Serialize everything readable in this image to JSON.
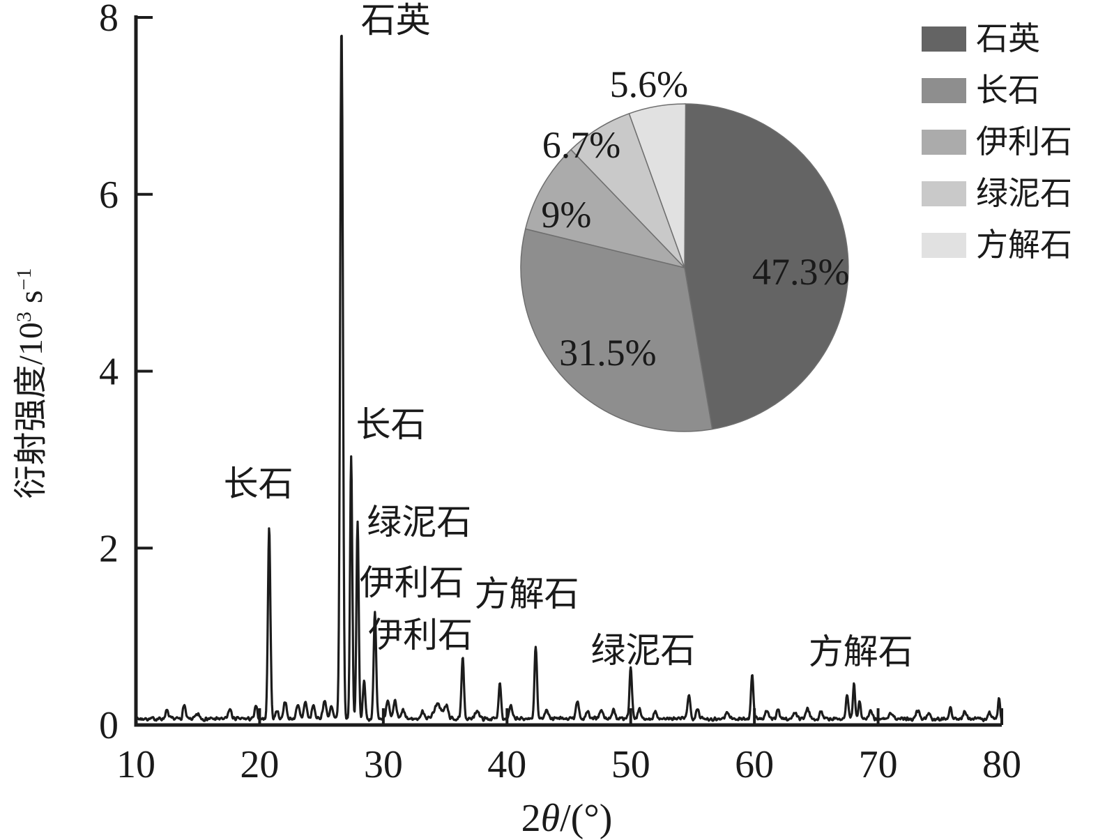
{
  "figure": {
    "background_color": "#ffffff",
    "ink_color": "#1c1c1c",
    "text_color": "#1a1a1a"
  },
  "chart_data": [
    {
      "type": "line",
      "name": "xrd-diffraction-pattern",
      "xlabel": "2θ/(°)",
      "xlabel_parts": [
        {
          "t": "2"
        },
        {
          "t": "θ",
          "italic": true
        },
        {
          "t": "/(°)"
        }
      ],
      "ylabel": "衍射强度/10³ s⁻¹",
      "ylabel_parts": [
        {
          "t": "衍射强度/10"
        },
        {
          "t": "3",
          "sup": true
        },
        {
          "t": " s"
        },
        {
          "t": "−1",
          "sup": true
        }
      ],
      "xlim": [
        10,
        80
      ],
      "ylim": [
        0,
        8
      ],
      "x_ticks": [
        10,
        20,
        30,
        40,
        50,
        60,
        70,
        80
      ],
      "y_ticks": [
        0,
        2,
        4,
        6,
        8
      ],
      "grid": false,
      "baseline": 0.07,
      "noise_amplitude": 0.028,
      "noise_seed": 7,
      "peaks": [
        {
          "two_theta": 12.5,
          "height": 0.09,
          "sigma": 0.12
        },
        {
          "two_theta": 13.9,
          "height": 0.16,
          "sigma": 0.1
        },
        {
          "two_theta": 15.0,
          "height": 0.05,
          "sigma": 0.15
        },
        {
          "two_theta": 17.6,
          "height": 0.11,
          "sigma": 0.12
        },
        {
          "two_theta": 19.7,
          "height": 0.14,
          "sigma": 0.1
        },
        {
          "two_theta": 20.77,
          "height": 2.17,
          "sigma": 0.1,
          "mineral": "长石"
        },
        {
          "two_theta": 21.4,
          "height": 0.1,
          "sigma": 0.1
        },
        {
          "two_theta": 22.05,
          "height": 0.2,
          "sigma": 0.12
        },
        {
          "two_theta": 23.1,
          "height": 0.14,
          "sigma": 0.14
        },
        {
          "two_theta": 23.7,
          "height": 0.19,
          "sigma": 0.12
        },
        {
          "two_theta": 24.35,
          "height": 0.15,
          "sigma": 0.12
        },
        {
          "two_theta": 25.25,
          "height": 0.2,
          "sigma": 0.14
        },
        {
          "two_theta": 25.8,
          "height": 0.13,
          "sigma": 0.12
        },
        {
          "two_theta": 26.62,
          "height": 7.85,
          "sigma": 0.11,
          "mineral": "石英"
        },
        {
          "two_theta": 27.4,
          "height": 2.96,
          "sigma": 0.09,
          "mineral": "长石"
        },
        {
          "two_theta": 27.92,
          "height": 2.23,
          "sigma": 0.09,
          "mineral": "绿泥石"
        },
        {
          "two_theta": 28.45,
          "height": 0.42,
          "sigma": 0.1
        },
        {
          "two_theta": 29.32,
          "height": 1.19,
          "sigma": 0.1,
          "mineral": "伊利石"
        },
        {
          "two_theta": 30.35,
          "height": 0.22,
          "sigma": 0.12
        },
        {
          "two_theta": 30.95,
          "height": 0.2,
          "sigma": 0.12
        },
        {
          "two_theta": 31.6,
          "height": 0.1,
          "sigma": 0.12
        },
        {
          "two_theta": 33.2,
          "height": 0.08,
          "sigma": 0.15
        },
        {
          "two_theta": 34.4,
          "height": 0.16,
          "sigma": 0.3
        },
        {
          "two_theta": 35.1,
          "height": 0.14,
          "sigma": 0.15
        },
        {
          "two_theta": 36.42,
          "height": 0.68,
          "sigma": 0.1,
          "mineral": "伊利石"
        },
        {
          "two_theta": 37.6,
          "height": 0.1,
          "sigma": 0.15
        },
        {
          "two_theta": 39.42,
          "height": 0.41,
          "sigma": 0.1
        },
        {
          "two_theta": 40.3,
          "height": 0.14,
          "sigma": 0.12
        },
        {
          "two_theta": 42.32,
          "height": 0.82,
          "sigma": 0.1,
          "mineral": "方解石"
        },
        {
          "two_theta": 43.2,
          "height": 0.12,
          "sigma": 0.12
        },
        {
          "two_theta": 45.7,
          "height": 0.2,
          "sigma": 0.12
        },
        {
          "two_theta": 46.5,
          "height": 0.09,
          "sigma": 0.12
        },
        {
          "two_theta": 47.6,
          "height": 0.1,
          "sigma": 0.14
        },
        {
          "two_theta": 48.6,
          "height": 0.11,
          "sigma": 0.12
        },
        {
          "two_theta": 50.0,
          "height": 0.58,
          "sigma": 0.1,
          "mineral": "绿泥石"
        },
        {
          "two_theta": 50.7,
          "height": 0.13,
          "sigma": 0.1
        },
        {
          "two_theta": 52.0,
          "height": 0.07,
          "sigma": 0.15
        },
        {
          "two_theta": 54.7,
          "height": 0.26,
          "sigma": 0.12
        },
        {
          "two_theta": 55.4,
          "height": 0.12,
          "sigma": 0.12
        },
        {
          "two_theta": 57.8,
          "height": 0.07,
          "sigma": 0.15
        },
        {
          "two_theta": 59.82,
          "height": 0.5,
          "sigma": 0.1
        },
        {
          "two_theta": 61.0,
          "height": 0.09,
          "sigma": 0.12
        },
        {
          "two_theta": 61.9,
          "height": 0.11,
          "sigma": 0.12
        },
        {
          "two_theta": 63.3,
          "height": 0.07,
          "sigma": 0.15
        },
        {
          "two_theta": 64.3,
          "height": 0.11,
          "sigma": 0.15
        },
        {
          "two_theta": 65.4,
          "height": 0.09,
          "sigma": 0.12
        },
        {
          "two_theta": 67.5,
          "height": 0.28,
          "sigma": 0.1
        },
        {
          "two_theta": 68.05,
          "height": 0.39,
          "sigma": 0.09,
          "mineral": "方解石"
        },
        {
          "two_theta": 68.5,
          "height": 0.2,
          "sigma": 0.09
        },
        {
          "two_theta": 69.4,
          "height": 0.09,
          "sigma": 0.12
        },
        {
          "two_theta": 71.0,
          "height": 0.06,
          "sigma": 0.15
        },
        {
          "two_theta": 73.2,
          "height": 0.09,
          "sigma": 0.15
        },
        {
          "two_theta": 74.1,
          "height": 0.07,
          "sigma": 0.12
        },
        {
          "two_theta": 75.85,
          "height": 0.15,
          "sigma": 0.1
        },
        {
          "two_theta": 77.0,
          "height": 0.07,
          "sigma": 0.12
        },
        {
          "two_theta": 79.0,
          "height": 0.07,
          "sigma": 0.12
        },
        {
          "two_theta": 79.78,
          "height": 0.24,
          "sigma": 0.08
        }
      ],
      "annotations": [
        {
          "text": "石英",
          "two_theta": 31.0,
          "intensity": 7.97
        },
        {
          "text": "长石",
          "two_theta": 30.6,
          "intensity": 3.4
        },
        {
          "text": "长石",
          "two_theta": 19.9,
          "intensity": 2.73
        },
        {
          "text": "绿泥石",
          "two_theta": 32.9,
          "intensity": 2.29
        },
        {
          "text": "伊利石",
          "two_theta": 32.3,
          "intensity": 1.61
        },
        {
          "text": "伊利石",
          "two_theta": 33.0,
          "intensity": 1.02
        },
        {
          "text": "方解石",
          "two_theta": 41.6,
          "intensity": 1.48
        },
        {
          "text": "绿泥石",
          "two_theta": 51.0,
          "intensity": 0.84
        },
        {
          "text": "方解石",
          "two_theta": 68.6,
          "intensity": 0.83
        }
      ]
    },
    {
      "type": "pie",
      "name": "mineral-composition",
      "labels": [
        "石英",
        "长石",
        "伊利石",
        "绿泥石",
        "方解石"
      ],
      "values": [
        47.3,
        31.5,
        9,
        6.7,
        5.6
      ],
      "value_labels": [
        "47.3%",
        "31.5%",
        "9%",
        "6.7%",
        "5.6%"
      ],
      "colors": [
        "#646464",
        "#8e8e8e",
        "#ababab",
        "#c9c9c9",
        "#e1e1e1"
      ],
      "start_angle_deg": 0,
      "direction": "clockwise",
      "slice_stroke": "#6e6e6e",
      "label_layout": [
        {
          "angle_deg": 92,
          "radius_frac": 0.71
        },
        {
          "angle_deg": 222,
          "radius_frac": 0.7
        },
        {
          "angle_deg": 294,
          "radius_frac": 0.79
        },
        {
          "angle_deg": 320,
          "radius_frac": 0.98
        },
        {
          "angle_deg": 349,
          "radius_frac": 1.14
        }
      ],
      "legend_position": "top-right"
    }
  ]
}
